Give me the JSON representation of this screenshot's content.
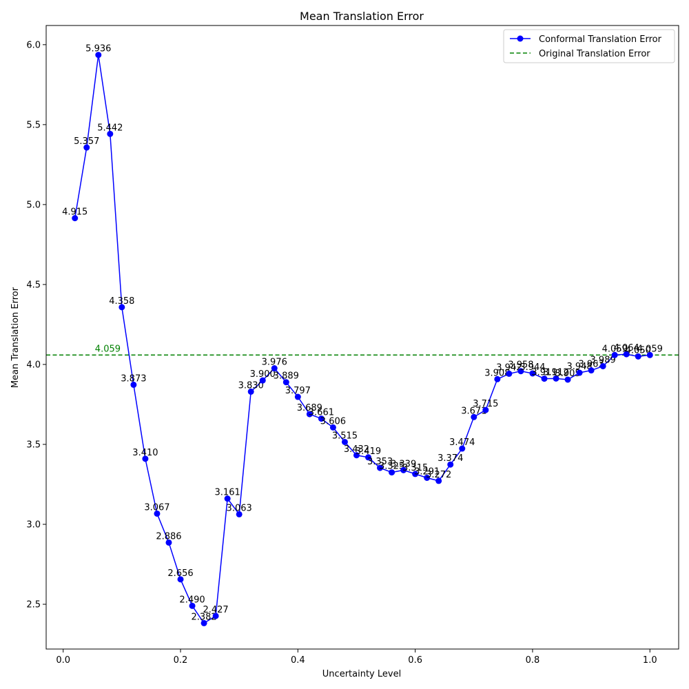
{
  "chart_data": {
    "type": "line",
    "title": "Mean Translation Error",
    "xlabel": "Uncertainty Level",
    "ylabel": "Mean Translation Error",
    "xlim": [
      -0.029,
      1.049
    ],
    "ylim": [
      2.22,
      6.12
    ],
    "xticks": [
      0.0,
      0.2,
      0.4,
      0.6,
      0.8,
      1.0
    ],
    "xtick_labels": [
      "0.0",
      "0.2",
      "0.4",
      "0.6",
      "0.8",
      "1.0"
    ],
    "yticks": [
      2.5,
      3.0,
      3.5,
      4.0,
      4.5,
      5.0,
      5.5,
      6.0
    ],
    "ytick_labels": [
      "2.5",
      "3.0",
      "3.5",
      "4.0",
      "4.5",
      "5.0",
      "5.5",
      "6.0"
    ],
    "grid": false,
    "legend_position": "top-right",
    "series": [
      {
        "name": "Conformal Translation Error",
        "color": "#0000ff",
        "marker": "circle",
        "x": [
          0.02,
          0.04,
          0.06,
          0.08,
          0.1,
          0.12,
          0.14,
          0.16,
          0.18,
          0.2,
          0.22,
          0.24,
          0.26,
          0.28,
          0.3,
          0.32,
          0.34,
          0.36,
          0.38,
          0.4,
          0.42,
          0.44,
          0.46,
          0.48,
          0.5,
          0.52,
          0.54,
          0.56,
          0.58,
          0.6,
          0.62,
          0.64,
          0.66,
          0.68,
          0.7,
          0.72,
          0.74,
          0.76,
          0.78,
          0.8,
          0.82,
          0.84,
          0.86,
          0.88,
          0.9,
          0.92,
          0.94,
          0.96,
          0.98,
          1.0
        ],
        "y": [
          4.915,
          5.357,
          5.936,
          5.442,
          4.358,
          3.873,
          3.41,
          3.067,
          2.886,
          2.656,
          2.49,
          2.382,
          2.427,
          3.161,
          3.063,
          3.83,
          3.9,
          3.976,
          3.889,
          3.797,
          3.689,
          3.661,
          3.606,
          3.515,
          3.432,
          3.419,
          3.353,
          3.325,
          3.339,
          3.315,
          3.291,
          3.272,
          3.374,
          3.474,
          3.671,
          3.715,
          3.908,
          3.942,
          3.958,
          3.944,
          3.911,
          3.912,
          3.905,
          3.948,
          3.963,
          3.989,
          4.059,
          4.064,
          4.05,
          4.059
        ],
        "labels": [
          "4.915",
          "5.357",
          "5.936",
          "5.442",
          "4.358",
          "3.873",
          "3.410",
          "3.067",
          "2.886",
          "2.656",
          "2.490",
          "2.382",
          "2.427",
          "3.161",
          "3.063",
          "3.830",
          "3.900",
          "3.976",
          "3.889",
          "3.797",
          "3.689",
          "3.661",
          "3.606",
          "3.515",
          "3.432",
          "3.419",
          "3.353",
          "3.325",
          "3.339",
          "3.315",
          "3.291",
          "3.272",
          "3.374",
          "3.474",
          "3.671",
          "3.715",
          "3.908",
          "3.942",
          "3.958",
          "3.944",
          "3.911",
          "3.912",
          "3.905",
          "3.948",
          "3.963",
          "3.989",
          "4.059",
          "4.064",
          "4.050",
          "4.059"
        ]
      },
      {
        "name": "Original Translation Error",
        "color": "#008000",
        "style": "dashed",
        "constant": 4.059,
        "label": "4.059"
      }
    ]
  }
}
